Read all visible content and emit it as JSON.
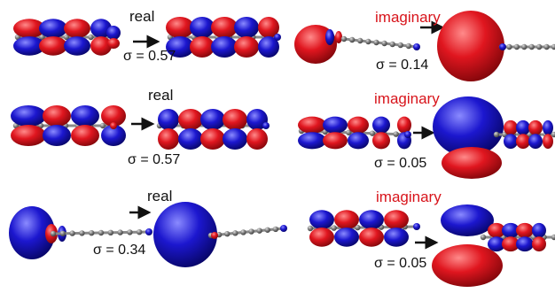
{
  "colors": {
    "positive_lobe": "#d9141d",
    "negative_lobe": "#1a14c8",
    "chain_atom": "#555555",
    "imaginary_label": "#d8141b",
    "real_label": "#111111"
  },
  "panels": [
    {
      "label": "real",
      "label_kind": "real",
      "sigma": "σ = 0.57"
    },
    {
      "label": "imaginary",
      "label_kind": "imaginary",
      "sigma": "σ = 0.14"
    },
    {
      "label": "real",
      "label_kind": "real",
      "sigma": "σ = 0.57"
    },
    {
      "label": "imaginary",
      "label_kind": "imaginary",
      "sigma": "σ = 0.05"
    },
    {
      "label": "real",
      "label_kind": "real",
      "sigma": "σ = 0.34"
    },
    {
      "label": "imaginary",
      "label_kind": "imaginary",
      "sigma": "σ = 0.05"
    }
  ]
}
